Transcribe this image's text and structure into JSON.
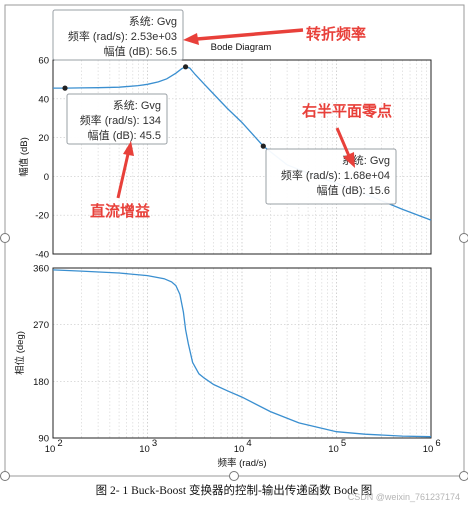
{
  "chart_data": [
    {
      "type": "line",
      "title": "Bode Diagram",
      "ylabel": "幅值 (dB)",
      "xscale": "log",
      "xlim": [
        100,
        1000000
      ],
      "ylim": [
        -40,
        60
      ],
      "yticks": [
        60,
        40,
        20,
        0,
        -20,
        -40
      ],
      "grid": true,
      "series": [
        {
          "x": [
            100,
            134,
            200,
            300,
            500,
            800,
            1000,
            1300,
            1600,
            2000,
            2300,
            2530,
            2800,
            3200,
            4000,
            5000,
            7000,
            10000,
            16800,
            30000,
            60000,
            100000,
            200000,
            500000,
            1000000
          ],
          "values": [
            45.5,
            45.5,
            45.6,
            45.7,
            46.0,
            46.8,
            47.5,
            48.7,
            50.3,
            53.2,
            55.5,
            56.5,
            55.8,
            52.5,
            47.5,
            42.5,
            35.0,
            27.8,
            15.6,
            6.0,
            0.2,
            -3.5,
            -9.0,
            -17.0,
            -22.5
          ]
        }
      ]
    },
    {
      "type": "line",
      "xlabel": "频率 (rad/s)",
      "ylabel": "相位 (deg)",
      "xscale": "log",
      "xlim": [
        100,
        1000000
      ],
      "ylim": [
        90,
        360
      ],
      "yticks": [
        360,
        270,
        180,
        90
      ],
      "xticks": [
        "10",
        "10",
        "10",
        "10",
        "10"
      ],
      "xtick_exp": [
        "2",
        "3",
        "4",
        "5",
        "6"
      ],
      "grid": true,
      "series": [
        {
          "x": [
            100,
            200,
            500,
            1000,
            1500,
            1800,
            2000,
            2200,
            2400,
            2530,
            2700,
            3000,
            3500,
            4000,
            5000,
            7000,
            10000,
            20000,
            40000,
            100000,
            200000,
            500000,
            1000000
          ],
          "values": [
            357,
            355,
            352,
            348,
            343,
            338,
            332,
            318,
            290,
            262,
            240,
            210,
            192,
            185,
            175,
            165,
            155,
            132,
            114,
            100,
            96,
            93,
            92
          ]
        }
      ]
    }
  ],
  "datatips": [
    {
      "line1": "系统: Gvg",
      "line2": "频率 (rad/s): 2.53e+03",
      "line3": "幅值 (dB): 56.5",
      "x": 2530,
      "y": 56.5
    },
    {
      "line1": "系统: Gvg",
      "line2": "频率 (rad/s): 134",
      "line3": "幅值 (dB): 45.5",
      "x": 134,
      "y": 45.5
    },
    {
      "line1": "系统: Gvg",
      "line2": "频率 (rad/s): 1.68e+04",
      "line3": "幅值 (dB): 15.6",
      "x": 16800,
      "y": 15.6
    }
  ],
  "annotations": {
    "turning_freq": "转折频率",
    "rhp_zero": "右半平面零点",
    "dc_gain": "直流增益"
  },
  "colors": {
    "line": "#3a8fd0",
    "annotation": "#e8403a",
    "grid": "#c8c8c8"
  },
  "caption": "图 2- 1 Buck-Boost 变换器的控制-输出传递函数 Bode 图",
  "watermark": "CSDN @weixin_761237174"
}
